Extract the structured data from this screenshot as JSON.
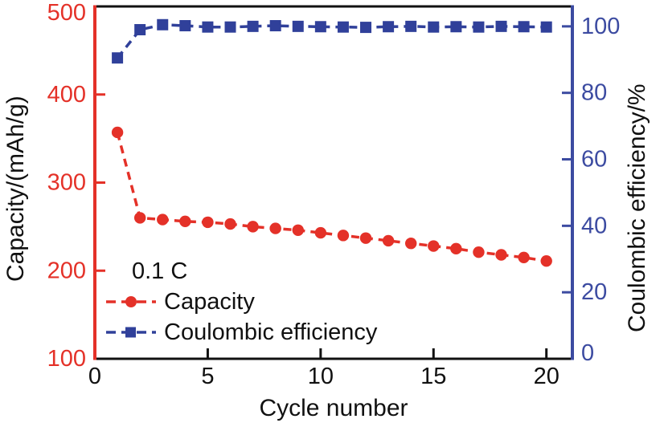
{
  "page": {
    "background": "#ffffff"
  },
  "chart_data": {
    "type": "line",
    "title": "",
    "xlabel": "Cycle number",
    "ylabel_left": "Capacity/(mAh/g)",
    "ylabel_right": "Coulombic efficiency/%",
    "annotation": "0.1 C",
    "x": [
      1,
      2,
      3,
      4,
      5,
      6,
      7,
      8,
      9,
      10,
      11,
      12,
      13,
      14,
      15,
      16,
      17,
      18,
      19,
      20
    ],
    "series": [
      {
        "name": "Capacity",
        "axis": "left",
        "marker": "circle",
        "color": "#e43128",
        "values": [
          357,
          260,
          258,
          256,
          255,
          253,
          250,
          248,
          246,
          243,
          240,
          237,
          234,
          231,
          228,
          225,
          221,
          218,
          215,
          211
        ]
      },
      {
        "name": "Coulombic efficiency",
        "axis": "right",
        "marker": "square",
        "color": "#30409a",
        "values": [
          90.5,
          99.0,
          100.5,
          100.2,
          99.8,
          99.8,
          100.0,
          100.2,
          100.0,
          99.9,
          99.8,
          99.7,
          99.9,
          100.0,
          99.8,
          99.9,
          99.8,
          100.0,
          99.9,
          99.8
        ]
      }
    ],
    "axes": {
      "x": {
        "min": 0,
        "max": 21.15,
        "ticks": [
          0,
          5,
          10,
          15,
          20
        ],
        "color": "#111111"
      },
      "left": {
        "min": 100,
        "max": 500,
        "ticks": [
          100,
          200,
          300,
          400,
          500
        ],
        "color": "#e43128"
      },
      "right": {
        "min": 0,
        "max": 106,
        "ticks": [
          0,
          20,
          40,
          60,
          80,
          100
        ],
        "color": "#3c4ba1"
      }
    },
    "grid": false,
    "legend": {
      "position": "lower-left"
    }
  }
}
